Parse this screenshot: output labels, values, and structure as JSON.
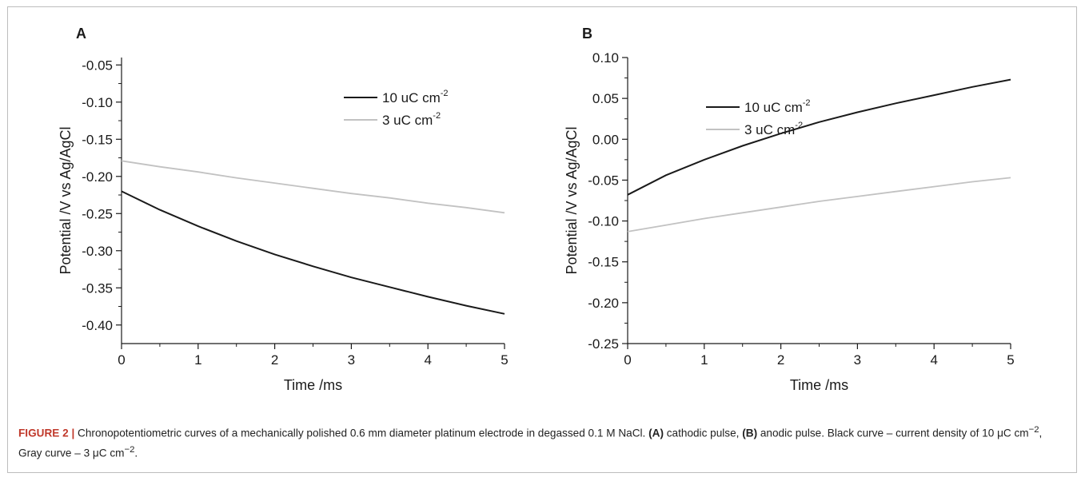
{
  "caption": {
    "figure_label": "FIGURE 2 |",
    "text_1": " Chronopotentiometric curves of a mechanically polished 0.6 mm diameter platinum electrode in degassed 0.1 M NaCl. ",
    "panel_a_ref": "(A)",
    "text_2": " cathodic pulse, ",
    "panel_b_ref": "(B)",
    "text_3": " anodic pulse. Black curve – current density of 10 μC cm",
    "exp_1": "−2",
    "text_4": ", Gray curve – 3 μC cm",
    "exp_2": "−2",
    "text_5": "."
  },
  "colors": {
    "black_series": "#1a1a1a",
    "gray_series": "#c2c2c2",
    "axis": "#1a1a1a"
  },
  "chart_data": [
    {
      "panel": "A",
      "type": "line",
      "xlabel": "Time /ms",
      "ylabel": "Potential /V vs Ag/AgCl",
      "xlim": [
        0,
        5
      ],
      "ylim": [
        -0.425,
        -0.04
      ],
      "xticks": [
        0,
        1,
        2,
        3,
        4,
        5
      ],
      "yticks": [
        -0.05,
        -0.1,
        -0.15,
        -0.2,
        -0.25,
        -0.3,
        -0.35,
        -0.4
      ],
      "ytick_labels": [
        "-0.05",
        "-0.10",
        "-0.15",
        "-0.20",
        "-0.25",
        "-0.30",
        "-0.35",
        "-0.40"
      ],
      "grid": false,
      "legend_position": "top-right",
      "series": [
        {
          "name": "10 uC cm",
          "name_sup": "-2",
          "color": "#1a1a1a",
          "x": [
            0,
            0.5,
            1,
            1.5,
            2,
            2.5,
            3,
            3.5,
            4,
            4.5,
            5
          ],
          "y": [
            -0.22,
            -0.245,
            -0.267,
            -0.287,
            -0.305,
            -0.321,
            -0.336,
            -0.349,
            -0.362,
            -0.374,
            -0.385
          ]
        },
        {
          "name": "3 uC cm",
          "name_sup": "-2",
          "color": "#c2c2c2",
          "x": [
            0,
            0.5,
            1,
            1.5,
            2,
            2.5,
            3,
            3.5,
            4,
            4.5,
            5
          ],
          "y": [
            -0.179,
            -0.187,
            -0.194,
            -0.202,
            -0.209,
            -0.216,
            -0.223,
            -0.229,
            -0.236,
            -0.242,
            -0.249
          ]
        }
      ]
    },
    {
      "panel": "B",
      "type": "line",
      "xlabel": "Time /ms",
      "ylabel": "Potential /V vs Ag/AgCl",
      "xlim": [
        0,
        5
      ],
      "ylim": [
        -0.25,
        0.1
      ],
      "xticks": [
        0,
        1,
        2,
        3,
        4,
        5
      ],
      "yticks": [
        0.1,
        0.05,
        0.0,
        -0.05,
        -0.1,
        -0.15,
        -0.2,
        -0.25
      ],
      "ytick_labels": [
        "0.10",
        "0.05",
        "0.00",
        "-0.05",
        "-0.10",
        "-0.15",
        "-0.20",
        "-0.25"
      ],
      "grid": false,
      "legend_position": "top-left",
      "series": [
        {
          "name": "10 uC cm",
          "name_sup": "-2",
          "color": "#1a1a1a",
          "x": [
            0,
            0.5,
            1,
            1.5,
            2,
            2.5,
            3,
            3.5,
            4,
            4.5,
            5
          ],
          "y": [
            -0.068,
            -0.044,
            -0.025,
            -0.008,
            0.007,
            0.021,
            0.033,
            0.044,
            0.054,
            0.064,
            0.073
          ]
        },
        {
          "name": "3 uC cm",
          "name_sup": "-2",
          "color": "#c2c2c2",
          "x": [
            0,
            0.5,
            1,
            1.5,
            2,
            2.5,
            3,
            3.5,
            4,
            4.5,
            5
          ],
          "y": [
            -0.113,
            -0.105,
            -0.097,
            -0.09,
            -0.083,
            -0.076,
            -0.07,
            -0.064,
            -0.058,
            -0.052,
            -0.047
          ]
        }
      ]
    }
  ]
}
